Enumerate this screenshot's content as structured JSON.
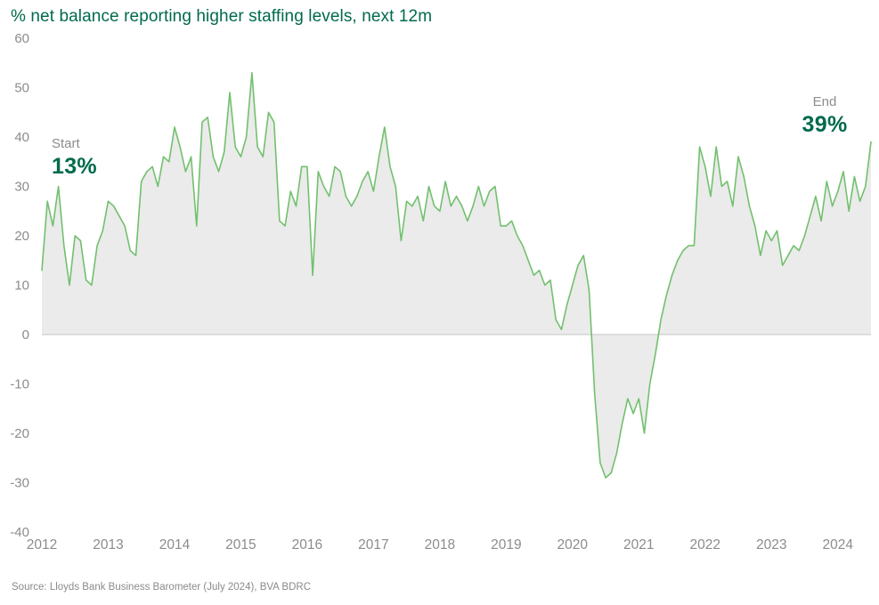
{
  "title": "% net balance reporting higher staffing levels, next 12m",
  "annotations": {
    "start_label": "Start",
    "start_value": "13%",
    "end_label": "End",
    "end_value": "39%"
  },
  "source": "Source: Lloyds Bank Business Barometer (July 2024), BVA BDRC",
  "colors": {
    "accent_green": "#006A4D",
    "line_green": "#72C06E",
    "area_fill": "#EBEBEB",
    "axis_text": "#8C8C8C",
    "zero_line": "#CFCFCF"
  },
  "chart_data": {
    "type": "area",
    "series_name": "% net balance reporting higher staffing levels, next 12m",
    "frequency": "monthly",
    "x_start": "2012-01",
    "x_end": "2024-07",
    "x_tick_labels": [
      "2012",
      "2013",
      "2014",
      "2015",
      "2016",
      "2017",
      "2018",
      "2019",
      "2020",
      "2021",
      "2022",
      "2023",
      "2024"
    ],
    "y_ticks": [
      60,
      50,
      40,
      30,
      20,
      10,
      0,
      -10,
      -20,
      -30,
      -40
    ],
    "ylim": [
      -40,
      60
    ],
    "baseline": 0,
    "grid": false,
    "legend": "none",
    "start_value": 13,
    "end_value": 39,
    "values": [
      13,
      27,
      22,
      30,
      18,
      10,
      20,
      19,
      11,
      10,
      18,
      21,
      27,
      26,
      24,
      22,
      17,
      16,
      31,
      33,
      34,
      30,
      36,
      35,
      42,
      38,
      33,
      36,
      22,
      43,
      44,
      36,
      33,
      37,
      49,
      38,
      36,
      40,
      53,
      38,
      36,
      45,
      43,
      23,
      22,
      29,
      26,
      34,
      34,
      12,
      33,
      30,
      28,
      34,
      33,
      28,
      26,
      28,
      31,
      33,
      29,
      36,
      42,
      34,
      30,
      19,
      27,
      26,
      28,
      23,
      30,
      26,
      25,
      31,
      26,
      28,
      26,
      23,
      26,
      30,
      26,
      29,
      30,
      22,
      22,
      23,
      20,
      18,
      15,
      12,
      13,
      10,
      11,
      3,
      1,
      6,
      10,
      14,
      16,
      9,
      -12,
      -26,
      -29,
      -28,
      -24,
      -18,
      -13,
      -16,
      -13,
      -20,
      -10,
      -4,
      3,
      8,
      12,
      15,
      17,
      18,
      18,
      38,
      34,
      28,
      38,
      30,
      31,
      26,
      36,
      32,
      26,
      22,
      16,
      21,
      19,
      21,
      14,
      16,
      18,
      17,
      20,
      24,
      28,
      23,
      31,
      26,
      29,
      33,
      25,
      32,
      27,
      30,
      39
    ]
  }
}
